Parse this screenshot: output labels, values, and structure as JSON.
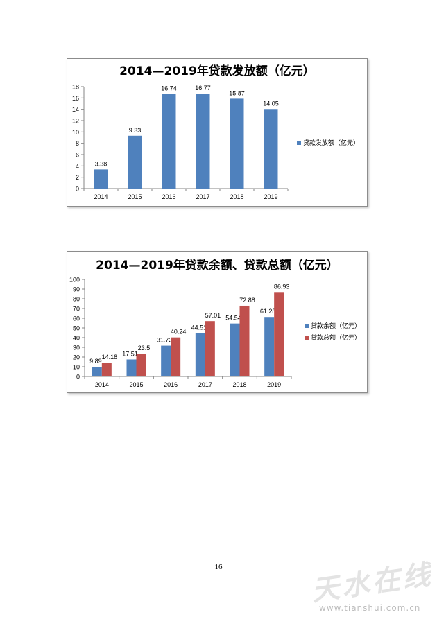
{
  "chart_data": [
    {
      "type": "bar",
      "title": "2014—2019年贷款发放额（亿元）",
      "categories": [
        "2014",
        "2015",
        "2016",
        "2017",
        "2018",
        "2019"
      ],
      "series": [
        {
          "name": "贷款发放额（亿元）",
          "values": [
            3.38,
            9.33,
            16.74,
            16.77,
            15.87,
            14.05
          ],
          "color": "#4f81bd"
        }
      ],
      "ylim": [
        0,
        18
      ],
      "yticks": [
        0,
        2,
        4,
        6,
        8,
        10,
        12,
        14,
        16,
        18
      ],
      "data_labels": [
        "3.38",
        "9.33",
        "16.74",
        "16.77",
        "15.87",
        "14.05"
      ],
      "legend_position": "right",
      "grid": false
    },
    {
      "type": "bar",
      "title": "2014—2019年贷款余额、贷款总额（亿元）",
      "categories": [
        "2014",
        "2015",
        "2016",
        "2017",
        "2018",
        "2019"
      ],
      "series": [
        {
          "name": "贷款余额（亿元）",
          "values": [
            9.89,
            17.51,
            31.73,
            44.51,
            54.54,
            61.28
          ],
          "color": "#4f81bd",
          "data_labels": [
            "9.89",
            "17.51",
            "31.73",
            "44.51",
            "54.54",
            "61.28"
          ]
        },
        {
          "name": "贷款总额（亿元）",
          "values": [
            14.18,
            23.5,
            40.24,
            57.01,
            72.88,
            86.93
          ],
          "color": "#c0504d",
          "data_labels": [
            "14.18",
            "23.5",
            "40.24",
            "57.01",
            "72.88",
            "86.93"
          ]
        }
      ],
      "ylim": [
        0,
        100
      ],
      "yticks": [
        0,
        10,
        20,
        30,
        40,
        50,
        60,
        70,
        80,
        90,
        100
      ],
      "legend_position": "right",
      "grid": false
    }
  ],
  "page": {
    "number": "16"
  },
  "watermark": {
    "chars": "天水在线",
    "url": "www.tianshui.com.cn"
  }
}
